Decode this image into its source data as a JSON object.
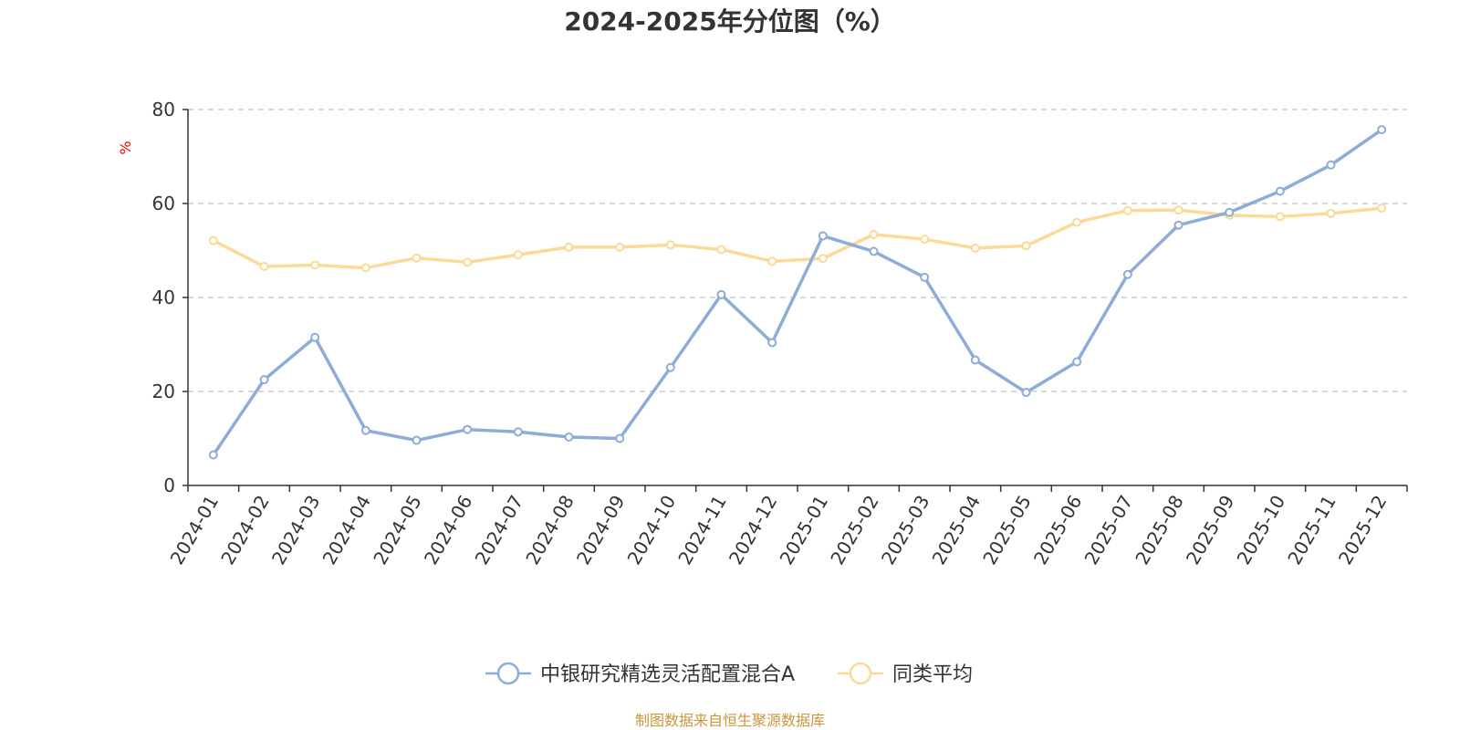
{
  "chart_data": {
    "type": "line",
    "title": "2024-2025年分位图（%）",
    "ylabel": "%",
    "ylim": [
      0,
      80
    ],
    "yticks": [
      0,
      20,
      40,
      60,
      80
    ],
    "grid": true,
    "legend_position": "bottom",
    "categories": [
      "2024-01",
      "2024-02",
      "2024-03",
      "2024-04",
      "2024-05",
      "2024-06",
      "2024-07",
      "2024-08",
      "2024-09",
      "2024-10",
      "2024-11",
      "2024-12",
      "2025-01",
      "2025-02",
      "2025-03",
      "2025-04",
      "2025-05",
      "2025-06",
      "2025-07",
      "2025-08",
      "2025-09",
      "2025-10",
      "2025-11",
      "2025-12"
    ],
    "series": [
      {
        "name": "中银研究精选灵活配置混合A",
        "color": "#8eacd8",
        "values": [
          6.5,
          22.5,
          31.5,
          11.7,
          9.6,
          11.9,
          11.4,
          10.3,
          10.0,
          25.1,
          40.6,
          30.4,
          53.1,
          49.8,
          44.3,
          26.7,
          19.8,
          26.3,
          44.9,
          55.4,
          58.1,
          62.6,
          68.2,
          75.7
        ]
      },
      {
        "name": "同类平均",
        "color": "#fcd999",
        "values": [
          52.1,
          46.6,
          46.9,
          46.3,
          48.4,
          47.5,
          49.1,
          50.7,
          50.7,
          51.2,
          50.2,
          47.7,
          48.3,
          53.4,
          52.4,
          50.5,
          51.0,
          56.0,
          58.5,
          58.6,
          57.5,
          57.2,
          57.9,
          59.0
        ]
      }
    ],
    "source": "制图数据来自恒生聚源数据库",
    "source_color": "#c8963c",
    "unit_color": "#ff0000"
  }
}
